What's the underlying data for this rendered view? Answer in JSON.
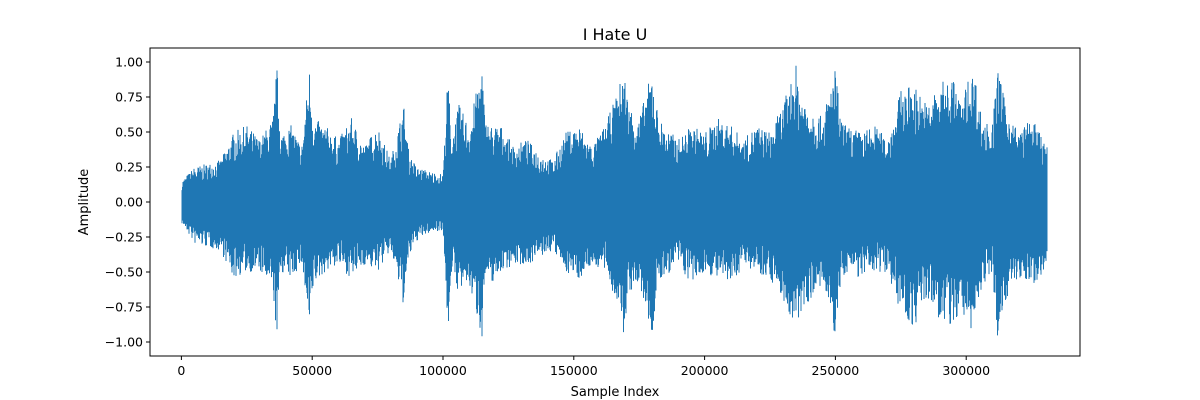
{
  "chart_data": {
    "type": "line",
    "title": "I Hate U",
    "xlabel": "Sample Index",
    "ylabel": "Amplitude",
    "xlim": [
      -12000,
      343500
    ],
    "ylim": [
      -1.1,
      1.1
    ],
    "x_ticks": [
      0,
      50000,
      100000,
      150000,
      200000,
      250000,
      300000
    ],
    "x_tick_labels": [
      "0",
      "50000",
      "100000",
      "150000",
      "200000",
      "250000",
      "300000"
    ],
    "y_ticks": [
      1.0,
      0.75,
      0.5,
      0.25,
      0.0,
      -0.25,
      -0.5,
      -0.75,
      -1.0
    ],
    "y_tick_labels": [
      "1.00",
      "0.75",
      "0.50",
      "0.25",
      "0.00",
      "−0.25",
      "−0.50",
      "−0.75",
      "−1.00"
    ],
    "grid": false,
    "series": [
      {
        "color": "#1f77b4",
        "sample_count": 331000,
        "envelope": {
          "x": [
            0,
            5000,
            15000,
            20000,
            25000,
            30000,
            35000,
            36500,
            38000,
            42000,
            46000,
            49000,
            50500,
            55000,
            60000,
            65000,
            70000,
            75000,
            80000,
            85000,
            87000,
            90000,
            95000,
            100000,
            102000,
            103000,
            106000,
            110000,
            115000,
            116000,
            118000,
            122000,
            127000,
            132000,
            137000,
            142000,
            147000,
            152000,
            157000,
            162000,
            167000,
            169000,
            171000,
            175000,
            180000,
            182000,
            184000,
            190000,
            195000,
            200000,
            205000,
            210000,
            215000,
            220000,
            225000,
            230000,
            235000,
            236000,
            238000,
            245000,
            250000,
            252000,
            254000,
            260000,
            265000,
            270000,
            275000,
            280000,
            285000,
            290000,
            295000,
            298000,
            300000,
            303000,
            306000,
            310000,
            312000,
            315000,
            320000,
            325000,
            330000
          ],
          "max": [
            0.15,
            0.25,
            0.3,
            0.5,
            0.55,
            0.45,
            0.6,
            0.98,
            0.5,
            0.55,
            0.4,
            0.97,
            0.6,
            0.55,
            0.45,
            0.6,
            0.4,
            0.55,
            0.3,
            0.7,
            0.35,
            0.25,
            0.22,
            0.2,
            0.98,
            0.45,
            0.7,
            0.55,
            0.99,
            0.6,
            0.55,
            0.55,
            0.4,
            0.45,
            0.35,
            0.3,
            0.5,
            0.55,
            0.4,
            0.55,
            0.8,
            0.97,
            0.7,
            0.6,
            0.95,
            0.65,
            0.55,
            0.45,
            0.55,
            0.5,
            0.6,
            0.55,
            0.45,
            0.55,
            0.5,
            0.7,
            0.98,
            0.85,
            0.75,
            0.6,
            0.97,
            0.6,
            0.55,
            0.5,
            0.55,
            0.45,
            0.8,
            0.85,
            0.7,
            0.85,
            0.9,
            0.7,
            0.85,
            0.95,
            0.6,
            0.55,
            0.98,
            0.7,
            0.5,
            0.6,
            0.45
          ],
          "min": [
            -0.15,
            -0.3,
            -0.35,
            -0.55,
            -0.5,
            -0.5,
            -0.65,
            -0.98,
            -0.5,
            -0.55,
            -0.45,
            -0.96,
            -0.6,
            -0.5,
            -0.45,
            -0.55,
            -0.45,
            -0.5,
            -0.35,
            -0.75,
            -0.4,
            -0.28,
            -0.22,
            -0.2,
            -0.97,
            -0.5,
            -0.65,
            -0.6,
            -0.97,
            -0.55,
            -0.6,
            -0.5,
            -0.45,
            -0.45,
            -0.4,
            -0.35,
            -0.5,
            -0.55,
            -0.45,
            -0.5,
            -0.75,
            -0.97,
            -0.65,
            -0.6,
            -0.97,
            -0.6,
            -0.55,
            -0.45,
            -0.6,
            -0.5,
            -0.55,
            -0.6,
            -0.45,
            -0.5,
            -0.55,
            -0.7,
            -0.97,
            -0.85,
            -0.75,
            -0.6,
            -0.98,
            -0.6,
            -0.5,
            -0.55,
            -0.5,
            -0.5,
            -0.8,
            -0.9,
            -0.7,
            -0.85,
            -0.95,
            -0.7,
            -0.95,
            -0.9,
            -0.6,
            -0.55,
            -0.97,
            -0.7,
            -0.55,
            -0.6,
            -0.5
          ]
        }
      }
    ]
  }
}
